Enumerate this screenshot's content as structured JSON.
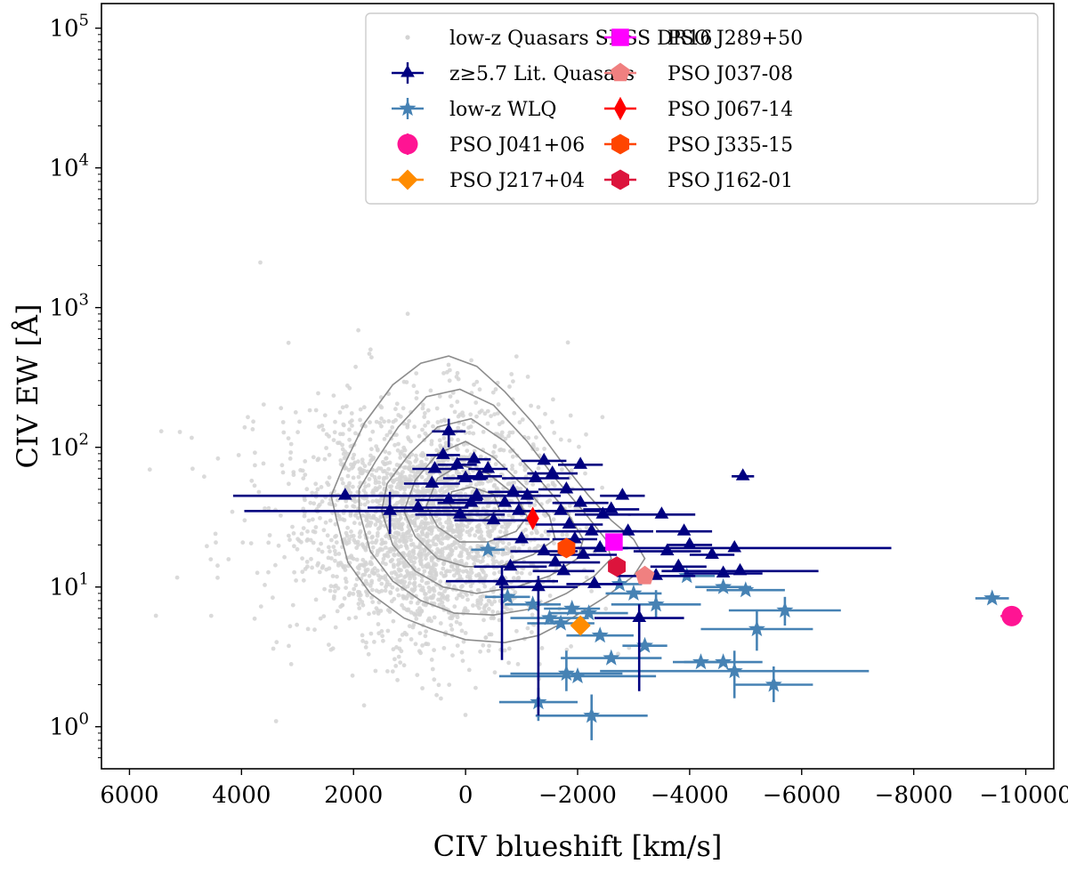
{
  "chart_data": {
    "type": "scatter",
    "xlabel": "CIV blueshift [km/s]",
    "ylabel": "CIV EW [Å]",
    "xlim": [
      6500,
      -10500
    ],
    "ylim": [
      0.5,
      150000
    ],
    "yscale": "log",
    "x_ticks": [
      6000,
      4000,
      2000,
      0,
      -2000,
      -4000,
      -6000,
      -8000,
      -10000
    ],
    "x_tick_labels": [
      "6000",
      "4000",
      "2000",
      "0",
      "−2000",
      "−4000",
      "−6000",
      "−8000",
      "−10000"
    ],
    "y_ticks": [
      1,
      10,
      100,
      1000,
      10000,
      100000
    ],
    "y_tick_labels": [
      {
        "base": "10",
        "exp": "0"
      },
      {
        "base": "10",
        "exp": "1"
      },
      {
        "base": "10",
        "exp": "2"
      },
      {
        "base": "10",
        "exp": "3"
      },
      {
        "base": "10",
        "exp": "4"
      },
      {
        "base": "10",
        "exp": "5"
      }
    ],
    "legend_position": "top-right",
    "colors": {
      "background_points": "#d3d3d3",
      "contour": "#8c8c8c",
      "lit_quasars": "#000080",
      "wlq": "#4682b4"
    },
    "background_contours": [
      {
        "level": 1,
        "points": [
          [
            2300,
            30
          ],
          [
            2100,
            15
          ],
          [
            1700,
            9
          ],
          [
            1100,
            6
          ],
          [
            600,
            5
          ],
          [
            0,
            4.2
          ],
          [
            -700,
            4
          ],
          [
            -1300,
            4.5
          ],
          [
            -1900,
            6
          ],
          [
            -2500,
            8.5
          ],
          [
            -3000,
            12
          ],
          [
            -3200,
            16
          ],
          [
            -3000,
            22
          ],
          [
            -2600,
            30
          ],
          [
            -2200,
            45
          ],
          [
            -1700,
            80
          ],
          [
            -1200,
            150
          ],
          [
            -700,
            250
          ],
          [
            -200,
            380
          ],
          [
            300,
            450
          ],
          [
            800,
            400
          ],
          [
            1300,
            280
          ],
          [
            1800,
            150
          ],
          [
            2200,
            70
          ],
          [
            2400,
            45
          ]
        ]
      },
      {
        "level": 2,
        "points": [
          [
            1900,
            35
          ],
          [
            1700,
            18
          ],
          [
            1300,
            11
          ],
          [
            800,
            8
          ],
          [
            200,
            6.5
          ],
          [
            -500,
            6.3
          ],
          [
            -1200,
            7
          ],
          [
            -1800,
            9
          ],
          [
            -2300,
            12
          ],
          [
            -2600,
            16
          ],
          [
            -2500,
            22
          ],
          [
            -2100,
            35
          ],
          [
            -1600,
            60
          ],
          [
            -1100,
            110
          ],
          [
            -500,
            200
          ],
          [
            100,
            260
          ],
          [
            700,
            230
          ],
          [
            1200,
            140
          ],
          [
            1600,
            80
          ],
          [
            1900,
            50
          ]
        ]
      },
      {
        "level": 3,
        "points": [
          [
            1500,
            35
          ],
          [
            1300,
            20
          ],
          [
            900,
            13
          ],
          [
            400,
            10
          ],
          [
            -200,
            9
          ],
          [
            -900,
            10
          ],
          [
            -1500,
            12
          ],
          [
            -2000,
            16
          ],
          [
            -2100,
            22
          ],
          [
            -1800,
            35
          ],
          [
            -1300,
            60
          ],
          [
            -700,
            110
          ],
          [
            -100,
            160
          ],
          [
            500,
            140
          ],
          [
            1000,
            90
          ],
          [
            1400,
            55
          ]
        ]
      },
      {
        "level": 4,
        "points": [
          [
            1100,
            35
          ],
          [
            900,
            23
          ],
          [
            500,
            16
          ],
          [
            0,
            14
          ],
          [
            -600,
            14
          ],
          [
            -1200,
            17
          ],
          [
            -1600,
            22
          ],
          [
            -1500,
            32
          ],
          [
            -1100,
            50
          ],
          [
            -500,
            85
          ],
          [
            0,
            110
          ],
          [
            500,
            90
          ],
          [
            900,
            58
          ]
        ]
      },
      {
        "level": 5,
        "points": [
          [
            700,
            38
          ],
          [
            500,
            27
          ],
          [
            100,
            21
          ],
          [
            -400,
            21
          ],
          [
            -900,
            25
          ],
          [
            -1100,
            32
          ],
          [
            -900,
            45
          ],
          [
            -400,
            65
          ],
          [
            100,
            75
          ],
          [
            500,
            60
          ]
        ]
      },
      {
        "level": 6,
        "points": [
          [
            300,
            40
          ],
          [
            100,
            31
          ],
          [
            -300,
            30
          ],
          [
            -600,
            36
          ],
          [
            -500,
            46
          ],
          [
            -100,
            52
          ],
          [
            250,
            48
          ]
        ]
      }
    ],
    "series": [
      {
        "name": "z≥5.7 Lit. Quasars",
        "marker": "triangle",
        "color": "#000080",
        "points": [
          {
            "x": 2150,
            "y": 45,
            "xerr": 2000
          },
          {
            "x": 1350,
            "y": 35,
            "xerr": 2600,
            "yerr_lo": 24,
            "yerr_hi": 48
          },
          {
            "x": 850,
            "y": 37,
            "xerr": 900
          },
          {
            "x": 600,
            "y": 55,
            "xerr": 500
          },
          {
            "x": 550,
            "y": 70,
            "xerr": 400
          },
          {
            "x": 400,
            "y": 88,
            "xerr": 300
          },
          {
            "x": 300,
            "y": 130,
            "xerr": 300,
            "yerr_lo": 100,
            "yerr_hi": 160
          },
          {
            "x": 150,
            "y": 75,
            "xerr": 350
          },
          {
            "x": 0,
            "y": 60,
            "xerr": 400
          },
          {
            "x": -150,
            "y": 82,
            "xerr": 300
          },
          {
            "x": -250,
            "y": 62,
            "xerr": 400
          },
          {
            "x": -400,
            "y": 70,
            "xerr": 350
          },
          {
            "x": -200,
            "y": 45,
            "xerr": 500
          },
          {
            "x": 100,
            "y": 33,
            "xerr": 800
          },
          {
            "x": -100,
            "y": 40,
            "xerr": 600
          },
          {
            "x": -500,
            "y": 30,
            "xerr": 700
          },
          {
            "x": -700,
            "y": 40,
            "xerr": 500
          },
          {
            "x": -850,
            "y": 48,
            "xerr": 450
          },
          {
            "x": -950,
            "y": 35,
            "xerr": 500
          },
          {
            "x": -1100,
            "y": 45,
            "xerr": 600
          },
          {
            "x": -1250,
            "y": 60,
            "xerr": 600
          },
          {
            "x": -1400,
            "y": 80,
            "xerr": 400
          },
          {
            "x": -1550,
            "y": 65,
            "xerr": 450
          },
          {
            "x": -1800,
            "y": 50,
            "xerr": 500
          },
          {
            "x": -2050,
            "y": 75,
            "xerr": 400
          },
          {
            "x": -1700,
            "y": 35,
            "xerr": 700
          },
          {
            "x": -1850,
            "y": 28,
            "xerr": 600
          },
          {
            "x": -2050,
            "y": 40,
            "xerr": 500
          },
          {
            "x": -2250,
            "y": 25,
            "xerr": 800
          },
          {
            "x": -2450,
            "y": 33,
            "xerr": 500
          },
          {
            "x": -2800,
            "y": 45,
            "xerr": 400
          },
          {
            "x": -2900,
            "y": 25,
            "xerr": 450
          },
          {
            "x": -1600,
            "y": 15,
            "xerr": 800
          },
          {
            "x": -1400,
            "y": 18,
            "xerr": 600
          },
          {
            "x": -1000,
            "y": 22,
            "xerr": 500
          },
          {
            "x": -800,
            "y": 14,
            "xerr": 650
          },
          {
            "x": -1750,
            "y": 13,
            "xerr": 550
          },
          {
            "x": -2100,
            "y": 17,
            "xerr": 600
          },
          {
            "x": -2400,
            "y": 19,
            "xerr": 500
          },
          {
            "x": -1300,
            "y": 10,
            "xerr": 700,
            "yerr_lo": 1.2,
            "yerr_hi": 12
          },
          {
            "x": -650,
            "y": 11,
            "xerr": 1000,
            "yerr_lo": 3,
            "yerr_hi": 14
          },
          {
            "x": -3100,
            "y": 6,
            "xerr": 800,
            "yerr_lo": 1.8,
            "yerr_hi": 7.5
          },
          {
            "x": -2300,
            "y": 10.5,
            "xerr": 500
          },
          {
            "x": -3400,
            "y": 12,
            "xerr": 700
          },
          {
            "x": -3600,
            "y": 18,
            "xerr": 600
          },
          {
            "x": -3500,
            "y": 33,
            "xerr": 600
          },
          {
            "x": -3800,
            "y": 14,
            "xerr": 500
          },
          {
            "x": -3900,
            "y": 25,
            "xerr": 500
          },
          {
            "x": -4000,
            "y": 20,
            "xerr": 400
          },
          {
            "x": -4400,
            "y": 17,
            "xerr": 400
          },
          {
            "x": -4600,
            "y": 12.5,
            "xerr": 700
          },
          {
            "x": -4800,
            "y": 19,
            "xerr": 2800
          },
          {
            "x": -4900,
            "y": 13,
            "xerr": 1400
          },
          {
            "x": -4950,
            "y": 62,
            "xerr": 200
          },
          {
            "x": -2600,
            "y": 36,
            "xerr": 500
          },
          {
            "x": -1950,
            "y": 22,
            "xerr": 400
          },
          {
            "x": 300,
            "y": 42,
            "xerr": 600
          }
        ]
      },
      {
        "name": "low-z WLQ",
        "marker": "star",
        "color": "#4682b4",
        "points": [
          {
            "x": -400,
            "y": 18.5,
            "xerr": 300
          },
          {
            "x": -750,
            "y": 8.5,
            "xerr": 400
          },
          {
            "x": -1200,
            "y": 7.5,
            "xerr": 500
          },
          {
            "x": -1500,
            "y": 6,
            "xerr": 700
          },
          {
            "x": -1700,
            "y": 5.5,
            "xerr": 600
          },
          {
            "x": -1900,
            "y": 7,
            "xerr": 500
          },
          {
            "x": -2200,
            "y": 6.5,
            "xerr": 700
          },
          {
            "x": -2400,
            "y": 4.5,
            "xerr": 600
          },
          {
            "x": -2750,
            "y": 10.5,
            "xerr": 400
          },
          {
            "x": -2600,
            "y": 3.1,
            "xerr": 900
          },
          {
            "x": -3200,
            "y": 3.8,
            "xerr": 400
          },
          {
            "x": -3400,
            "y": 7.5,
            "xerr": 800,
            "yerr_lo": 6,
            "yerr_hi": 9.5
          },
          {
            "x": -3950,
            "y": 12,
            "xerr": 500
          },
          {
            "x": -4200,
            "y": 2.9,
            "xerr": 500
          },
          {
            "x": -4600,
            "y": 2.9,
            "xerr": 700
          },
          {
            "x": -4600,
            "y": 10,
            "xerr": 500
          },
          {
            "x": -4800,
            "y": 2.5,
            "xerr": 2400,
            "yerr_lo": 1.6,
            "yerr_hi": 3.5
          },
          {
            "x": -5000,
            "y": 9.5,
            "xerr": 700
          },
          {
            "x": -5200,
            "y": 5,
            "xerr": 1000,
            "yerr_lo": 3.5,
            "yerr_hi": 6.8
          },
          {
            "x": -5700,
            "y": 6.8,
            "xerr": 1000,
            "yerr_lo": 5.3,
            "yerr_hi": 8.5
          },
          {
            "x": -5500,
            "y": 2,
            "xerr": 700,
            "yerr_lo": 1.5,
            "yerr_hi": 2.7
          },
          {
            "x": -9400,
            "y": 8.3,
            "xerr": 300
          },
          {
            "x": -2250,
            "y": 1.2,
            "xerr": 1000,
            "yerr_lo": 0.8,
            "yerr_hi": 1.7
          },
          {
            "x": -1800,
            "y": 2.4,
            "xerr": 1000,
            "yerr_lo": 1.8,
            "yerr_hi": 3.5
          },
          {
            "x": -2000,
            "y": 2.3,
            "xerr": 1400
          },
          {
            "x": -1300,
            "y": 1.5,
            "xerr": 700,
            "yerr_lo": 1.1,
            "yerr_hi": 1.9
          },
          {
            "x": -3000,
            "y": 9,
            "xerr": 500
          }
        ]
      },
      {
        "name": "PSO J041+06",
        "marker": "circle",
        "color": "#ff1493",
        "points": [
          {
            "x": -9750,
            "y": 6.2,
            "xerr": 200
          }
        ]
      },
      {
        "name": "PSO J217+04",
        "marker": "diamond",
        "color": "#ff8c00",
        "points": [
          {
            "x": -2050,
            "y": 5.3,
            "xerr": 150
          }
        ]
      },
      {
        "name": "PSO J289+50",
        "marker": "square",
        "color": "#ff00ff",
        "points": [
          {
            "x": -2650,
            "y": 21,
            "xerr": 100
          }
        ]
      },
      {
        "name": "PSO J037-08",
        "marker": "pentagon",
        "color": "#f08080",
        "points": [
          {
            "x": -3200,
            "y": 12,
            "xerr": 150
          }
        ]
      },
      {
        "name": "PSO J067-14",
        "marker": "thin_diamond",
        "color": "#ff0000",
        "points": [
          {
            "x": -1200,
            "y": 31,
            "xerr": 100
          }
        ]
      },
      {
        "name": "PSO J335-15",
        "marker": "hexagon",
        "color": "#ff4500",
        "points": [
          {
            "x": -1800,
            "y": 19,
            "xerr": 150
          }
        ]
      },
      {
        "name": "PSO J162-01",
        "marker": "hexagon",
        "color": "#dc143c",
        "points": [
          {
            "x": -2700,
            "y": 14,
            "xerr": 150
          }
        ]
      }
    ],
    "legend": [
      {
        "label": "low-z Quasars SDSS DR16",
        "marker": "dot",
        "color": "#d3d3d3"
      },
      {
        "label": "z≥5.7 Lit. Quasars",
        "marker": "triangle",
        "color": "#000080"
      },
      {
        "label": "low-z WLQ",
        "marker": "star",
        "color": "#4682b4"
      },
      {
        "label": "PSO J041+06",
        "marker": "circle",
        "color": "#ff1493"
      },
      {
        "label": "PSO J217+04",
        "marker": "diamond",
        "color": "#ff8c00"
      },
      {
        "label": "PSO J289+50",
        "marker": "square",
        "color": "#ff00ff"
      },
      {
        "label": "PSO J037-08",
        "marker": "pentagon",
        "color": "#f08080"
      },
      {
        "label": "PSO J067-14",
        "marker": "thin_diamond",
        "color": "#ff0000"
      },
      {
        "label": "PSO J335-15",
        "marker": "hexagon",
        "color": "#ff4500"
      },
      {
        "label": "PSO J162-01",
        "marker": "hexagon",
        "color": "#dc143c"
      }
    ]
  }
}
